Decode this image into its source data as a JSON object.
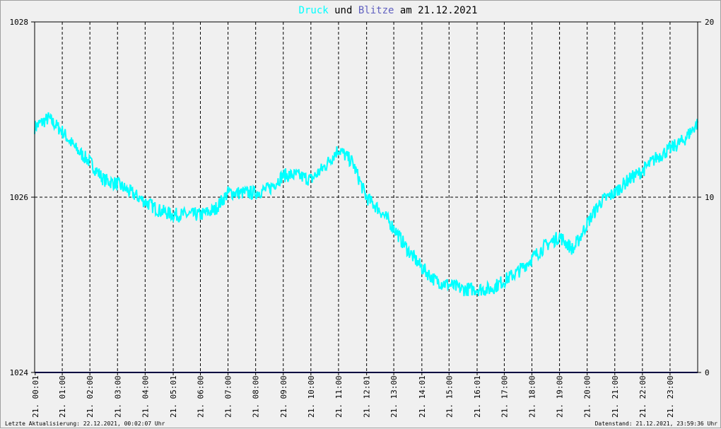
{
  "title": {
    "part1": "Druck",
    "part2": " und ",
    "part3": "Blitze",
    "part4": " am 21.12.2021"
  },
  "footer": {
    "left": "Letzte Aktualisierung: 22.12.2021, 00:02:07 Uhr",
    "right": "Datenstand: 21.12.2021, 23:59:36 Uhr"
  },
  "colors": {
    "druck": "#00ffff",
    "blitze": "#6060c0",
    "zero_line": "#000080",
    "grid": "#000000"
  },
  "chart_data": {
    "type": "line",
    "title": "Druck und Blitze am 21.12.2021",
    "x_ticks": [
      "21. 00:01",
      "21. 01:00",
      "21. 02:00",
      "21. 03:00",
      "21. 04:00",
      "21. 05:01",
      "21. 06:00",
      "21. 07:00",
      "21. 08:00",
      "21. 09:00",
      "21. 10:00",
      "21. 11:00",
      "21. 12:01",
      "21. 13:00",
      "21. 14:01",
      "21. 15:00",
      "21. 16:01",
      "21. 17:00",
      "21. 18:00",
      "21. 19:00",
      "21. 20:00",
      "21. 21:00",
      "21. 22:00",
      "21. 23:00"
    ],
    "y_left": {
      "ticks": [
        "1024",
        "1026",
        "1028"
      ],
      "range": [
        1024,
        1028
      ]
    },
    "y_right": {
      "ticks": [
        "0",
        "10",
        "20"
      ],
      "range": [
        0,
        20
      ]
    },
    "grid": true,
    "series": [
      {
        "name": "Druck",
        "axis": "left",
        "x": [
          0,
          0.5,
          1,
          1.5,
          2,
          2.5,
          3,
          3.5,
          4,
          4.5,
          5,
          5.5,
          6,
          6.5,
          7,
          7.5,
          8,
          8.5,
          9,
          9.5,
          10,
          10.5,
          11,
          11.5,
          12,
          12.5,
          13,
          13.5,
          14,
          14.5,
          15,
          15.5,
          16,
          16.5,
          17,
          17.5,
          18,
          18.5,
          19,
          19.5,
          20,
          20.5,
          21,
          21.5,
          22,
          22.5,
          23,
          23.5,
          24
        ],
        "values": [
          1026.8,
          1026.9,
          1026.75,
          1026.55,
          1026.4,
          1026.2,
          1026.15,
          1026.05,
          1025.95,
          1025.85,
          1025.8,
          1025.8,
          1025.8,
          1025.85,
          1026.05,
          1026.05,
          1026.05,
          1026.1,
          1026.25,
          1026.25,
          1026.2,
          1026.35,
          1026.55,
          1026.4,
          1026.0,
          1025.85,
          1025.65,
          1025.4,
          1025.2,
          1025.05,
          1025.0,
          1024.95,
          1024.95,
          1024.95,
          1025.05,
          1025.15,
          1025.3,
          1025.45,
          1025.55,
          1025.4,
          1025.7,
          1025.95,
          1026.05,
          1026.2,
          1026.3,
          1026.45,
          1026.55,
          1026.65,
          1026.85
        ]
      },
      {
        "name": "Blitze",
        "axis": "right",
        "x": [
          0,
          24
        ],
        "values": [
          0,
          0
        ]
      }
    ]
  }
}
